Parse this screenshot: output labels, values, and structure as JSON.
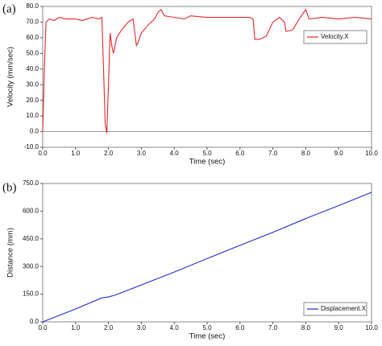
{
  "chart_data": [
    {
      "type": "line",
      "panel_label": "(a)",
      "x_label": "Time (sec)",
      "y_label": "Velocity (mm/sec)",
      "x": [
        0,
        0.05,
        0.1,
        0.2,
        0.35,
        0.5,
        0.7,
        1.0,
        1.2,
        1.5,
        1.7,
        1.8,
        1.85,
        1.9,
        1.95,
        2.0,
        2.05,
        2.1,
        2.15,
        2.25,
        2.4,
        2.6,
        2.75,
        2.85,
        2.9,
        3.0,
        3.2,
        3.4,
        3.5,
        3.6,
        3.7,
        4.0,
        4.3,
        4.5,
        5.0,
        5.5,
        6.0,
        6.3,
        6.4,
        6.45,
        6.6,
        6.8,
        7.0,
        7.2,
        7.35,
        7.4,
        7.6,
        7.8,
        7.9,
        8.0,
        8.1,
        8.5,
        9.0,
        9.5,
        10.0
      ],
      "series": [
        {
          "name": "Velocity.X",
          "color": "#e8262a",
          "values": [
            0,
            40,
            70,
            72,
            71,
            73,
            72,
            72,
            71,
            73,
            72,
            73,
            40,
            5,
            -1,
            30,
            63,
            55,
            50,
            60,
            65,
            70,
            72,
            55,
            57,
            63,
            68,
            72,
            76,
            78,
            74,
            73,
            72,
            74,
            73,
            73,
            73,
            73,
            72,
            59,
            59,
            61,
            70,
            73,
            70,
            64,
            65,
            72,
            75,
            78,
            72,
            73,
            72,
            73,
            72
          ]
        }
      ],
      "xlim": [
        0,
        10
      ],
      "ylim": [
        -10,
        80
      ],
      "xticks": [
        {
          "value": 0,
          "label": "0.0"
        },
        {
          "value": 1,
          "label": "1.0"
        },
        {
          "value": 2,
          "label": "2.0"
        },
        {
          "value": 3,
          "label": "3.0"
        },
        {
          "value": 4,
          "label": "4.0"
        },
        {
          "value": 5,
          "label": "5.0"
        },
        {
          "value": 6,
          "label": "6.0"
        },
        {
          "value": 7,
          "label": "7.0"
        },
        {
          "value": 8,
          "label": "8.0"
        },
        {
          "value": 9,
          "label": "9.0"
        },
        {
          "value": 10,
          "label": "10.0"
        }
      ],
      "yticks": [
        {
          "value": -10,
          "label": "-10.0"
        },
        {
          "value": 0,
          "label": "0.0"
        },
        {
          "value": 10,
          "label": "10.0"
        },
        {
          "value": 20,
          "label": "20.0"
        },
        {
          "value": 30,
          "label": "30.0"
        },
        {
          "value": 40,
          "label": "40.0"
        },
        {
          "value": 50,
          "label": "50.0"
        },
        {
          "value": 60,
          "label": "60.0"
        },
        {
          "value": 70,
          "label": "70.0"
        },
        {
          "value": 80,
          "label": "80.0"
        }
      ],
      "zero_line": true,
      "legend": "upper right"
    },
    {
      "type": "line",
      "panel_label": "(b)",
      "x_label": "Time (sec)",
      "y_label": "Distance (mm)",
      "x": [
        0,
        1,
        1.8,
        2.0,
        2.2,
        3,
        4,
        5,
        6,
        7,
        8,
        9,
        10
      ],
      "series": [
        {
          "name": "Displacement.X",
          "color": "#1f2bd0",
          "values": [
            0,
            70,
            130,
            135,
            145,
            200,
            270,
            343,
            415,
            485,
            560,
            630,
            702
          ]
        }
      ],
      "xlim": [
        0,
        10
      ],
      "ylim": [
        0,
        750
      ],
      "xticks": [
        {
          "value": 0,
          "label": "0.0"
        },
        {
          "value": 1,
          "label": "1.0"
        },
        {
          "value": 2,
          "label": "2.0"
        },
        {
          "value": 3,
          "label": "3.0"
        },
        {
          "value": 4,
          "label": "4.0"
        },
        {
          "value": 5,
          "label": "5.0"
        },
        {
          "value": 6,
          "label": "6.0"
        },
        {
          "value": 7,
          "label": "7.0"
        },
        {
          "value": 8,
          "label": "8.0"
        },
        {
          "value": 9,
          "label": "9.0"
        },
        {
          "value": 10,
          "label": "10.0"
        }
      ],
      "yticks": [
        {
          "value": 0,
          "label": "0.0"
        },
        {
          "value": 150,
          "label": "150.0"
        },
        {
          "value": 300,
          "label": "300.0"
        },
        {
          "value": 450,
          "label": "450.0"
        },
        {
          "value": 600,
          "label": "600.0"
        },
        {
          "value": 750,
          "label": "750.0"
        }
      ],
      "zero_line": false,
      "legend": "lower right"
    }
  ]
}
